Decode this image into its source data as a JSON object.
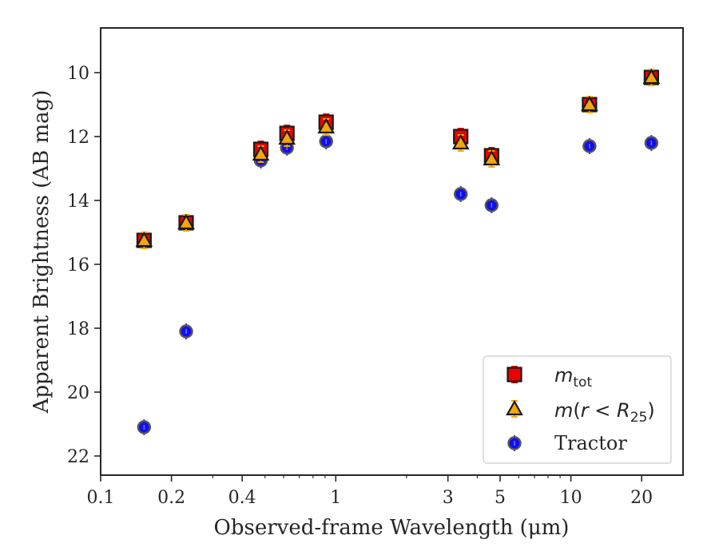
{
  "chart_data": {
    "type": "scatter",
    "xlabel": "Observed-frame Wavelength (μm)",
    "ylabel": "Apparent Brightness (AB mag)",
    "xscale": "log",
    "xlim": [
      0.1,
      30
    ],
    "ylim": [
      22.6,
      8.6
    ],
    "y_inverted": true,
    "grid": false,
    "legend_position": "lower-right",
    "x_ticks": [
      {
        "value": 0.1,
        "label": "0.1"
      },
      {
        "value": 0.2,
        "label": "0.2"
      },
      {
        "value": 0.4,
        "label": "0.4"
      },
      {
        "value": 1,
        "label": "1"
      },
      {
        "value": 3,
        "label": "3"
      },
      {
        "value": 5,
        "label": "5"
      },
      {
        "value": 10,
        "label": "10"
      },
      {
        "value": 20,
        "label": "20"
      }
    ],
    "y_ticks": [
      {
        "value": 10,
        "label": "10"
      },
      {
        "value": 12,
        "label": "12"
      },
      {
        "value": 14,
        "label": "14"
      },
      {
        "value": 16,
        "label": "16"
      },
      {
        "value": 18,
        "label": "18"
      },
      {
        "value": 20,
        "label": "20"
      },
      {
        "value": 22,
        "label": "22"
      }
    ],
    "series": [
      {
        "name": "m_tot",
        "legend": {
          "italic": "m",
          "sub": "tot"
        },
        "marker": "square",
        "color": "#ee0000",
        "points": [
          {
            "x": 0.153,
            "y": 15.25
          },
          {
            "x": 0.231,
            "y": 14.7
          },
          {
            "x": 0.48,
            "y": 12.4
          },
          {
            "x": 0.62,
            "y": 11.9
          },
          {
            "x": 0.91,
            "y": 11.55
          },
          {
            "x": 3.4,
            "y": 12.0
          },
          {
            "x": 4.6,
            "y": 12.6
          },
          {
            "x": 12.0,
            "y": 11.0
          },
          {
            "x": 22.0,
            "y": 10.15
          }
        ]
      },
      {
        "name": "m(r<R_25)",
        "legend": {
          "italic": "m",
          "paren_open": "(",
          "r": "r",
          "lt": " < ",
          "R": "R",
          "sub": "25",
          "paren_close": ")"
        },
        "marker": "triangle",
        "color": "#f5a60a",
        "points": [
          {
            "x": 0.153,
            "y": 15.25
          },
          {
            "x": 0.231,
            "y": 14.7
          },
          {
            "x": 0.48,
            "y": 12.55
          },
          {
            "x": 0.62,
            "y": 12.05
          },
          {
            "x": 0.91,
            "y": 11.7
          },
          {
            "x": 3.4,
            "y": 12.2
          },
          {
            "x": 4.6,
            "y": 12.7
          },
          {
            "x": 12.0,
            "y": 11.0
          },
          {
            "x": 22.0,
            "y": 10.15
          }
        ]
      },
      {
        "name": "Tractor",
        "legend": {
          "text": "Tractor"
        },
        "marker": "circle",
        "color": "#1010ee",
        "points": [
          {
            "x": 0.153,
            "y": 21.1
          },
          {
            "x": 0.231,
            "y": 18.1
          },
          {
            "x": 0.48,
            "y": 12.75
          },
          {
            "x": 0.62,
            "y": 12.35
          },
          {
            "x": 0.91,
            "y": 12.15
          },
          {
            "x": 3.4,
            "y": 13.8
          },
          {
            "x": 4.6,
            "y": 14.15
          },
          {
            "x": 12.0,
            "y": 12.3
          },
          {
            "x": 22.0,
            "y": 12.2
          }
        ]
      }
    ]
  }
}
